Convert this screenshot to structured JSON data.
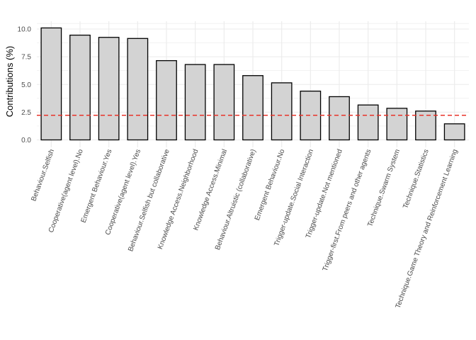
{
  "chart_data": {
    "type": "bar",
    "title": "",
    "xlabel": "",
    "ylabel": "Contributions (%)",
    "ylim": [
      0,
      10.5
    ],
    "yticks": [
      0.0,
      2.5,
      5.0,
      7.5,
      10.0
    ],
    "ytick_labels": [
      "0.0",
      "2.5",
      "5.0",
      "7.5",
      "10.0"
    ],
    "grid": true,
    "legend": "none",
    "categories": [
      "Behaviour.Selfish",
      "Cooperative(agent level).No",
      "Emergent Behaviour.Yes",
      "Cooperative(agent level).Yes",
      "Behaviour.Selfish but collaborative",
      "Knowledge Access.Neighborhood",
      "Knowledge Access.Minimal",
      "Behaviour.Altruistic (collaborative)",
      "Emergent Behaviour.No",
      "Trigger-update.Social Interaction",
      "Trigger-update.Not mentioned",
      "Trigger-first.From peers and other agents",
      "Technique.Swarm System",
      "Technique.Statistics",
      "Technique.Game Theory and Reinforcement Learning"
    ],
    "values": [
      10.1,
      9.45,
      9.25,
      9.15,
      7.15,
      6.8,
      6.8,
      5.8,
      5.15,
      4.4,
      3.9,
      3.15,
      2.85,
      2.6,
      1.45
    ],
    "reference_line": {
      "value": 2.22,
      "style": "dashed"
    },
    "colors": {
      "bar_fill": "#d3d3d3",
      "bar_stroke": "#000000",
      "reference_line": "#e8332a",
      "grid": "#ebebeb"
    }
  }
}
